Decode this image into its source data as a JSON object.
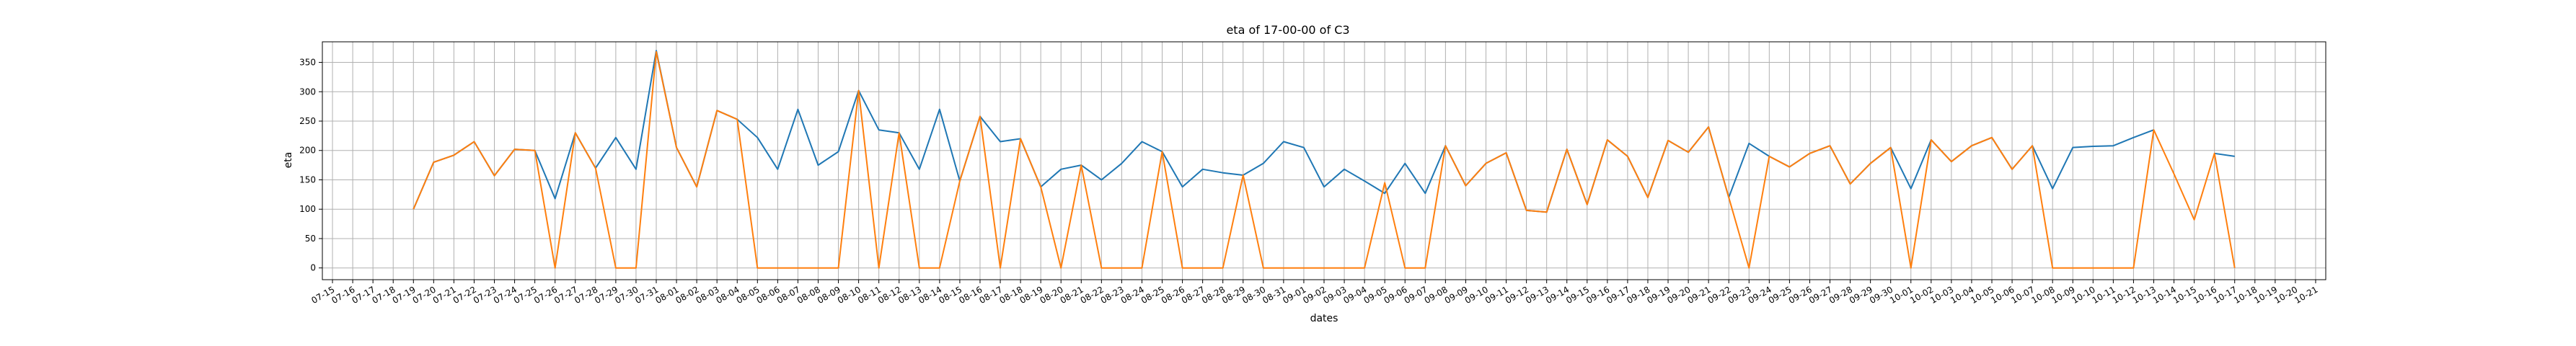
{
  "chart_data": {
    "type": "line",
    "title": "eta of 17-00-00 of C3",
    "xlabel": "dates",
    "ylabel": "eta",
    "x_ticks": [
      "07-15",
      "07-16",
      "07-17",
      "07-18",
      "07-19",
      "07-20",
      "07-21",
      "07-22",
      "07-23",
      "07-24",
      "07-25",
      "07-26",
      "07-27",
      "07-28",
      "07-29",
      "07-30",
      "07-31",
      "08-01",
      "08-02",
      "08-03",
      "08-04",
      "08-05",
      "08-06",
      "08-07",
      "08-08",
      "08-09",
      "08-10",
      "08-11",
      "08-12",
      "08-13",
      "08-14",
      "08-15",
      "08-16",
      "08-17",
      "08-18",
      "08-19",
      "08-20",
      "08-21",
      "08-22",
      "08-23",
      "08-24",
      "08-25",
      "08-26",
      "08-27",
      "08-28",
      "08-29",
      "08-30",
      "08-31",
      "09-01",
      "09-02",
      "09-03",
      "09-04",
      "09-05",
      "09-06",
      "09-07",
      "09-08",
      "09-09",
      "09-10",
      "09-11",
      "09-12",
      "09-13",
      "09-14",
      "09-15",
      "09-16",
      "09-17",
      "09-18",
      "09-19",
      "09-20",
      "09-21",
      "09-22",
      "09-23",
      "09-24",
      "09-25",
      "09-26",
      "09-27",
      "09-28",
      "09-29",
      "09-30",
      "10-01",
      "10-02",
      "10-03",
      "10-04",
      "10-05",
      "10-06",
      "10-07",
      "10-08",
      "10-09",
      "10-10",
      "10-11",
      "10-12",
      "10-13",
      "10-14",
      "10-15",
      "10-16",
      "10-17",
      "10-18",
      "10-19",
      "10-20",
      "10-21"
    ],
    "y_ticks": [
      0,
      50,
      100,
      150,
      200,
      250,
      300,
      350
    ],
    "xlim": [
      "07-15",
      "10-21"
    ],
    "ylim": [
      -20,
      385
    ],
    "grid": true,
    "colors": [
      "#1f77b4",
      "#ff7f0e"
    ],
    "series": [
      {
        "x": [
          "07-19",
          "07-20",
          "07-21",
          "07-22",
          "07-23",
          "07-24",
          "07-25",
          "07-26",
          "07-27",
          "07-28",
          "07-29",
          "07-30",
          "07-31",
          "08-01",
          "08-02",
          "08-03",
          "08-04",
          "08-05",
          "08-06",
          "08-07",
          "08-08",
          "08-09",
          "08-10",
          "08-11",
          "08-12",
          "08-13",
          "08-14",
          "08-15",
          "08-16",
          "08-17",
          "08-18",
          "08-19",
          "08-20",
          "08-21",
          "08-22",
          "08-23",
          "08-24",
          "08-25",
          "08-26",
          "08-27",
          "08-28",
          "08-29",
          "08-30",
          "08-31",
          "09-01",
          "09-02",
          "09-03",
          "09-04",
          "09-05",
          "09-06",
          "09-07",
          "09-08",
          "09-09",
          "09-10",
          "09-11",
          "09-12",
          "09-13",
          "09-14",
          "09-15",
          "09-16",
          "09-17",
          "09-18",
          "09-19",
          "09-20",
          "09-21",
          "09-22",
          "09-23",
          "09-24",
          "09-25",
          "09-26",
          "09-27",
          "09-28",
          "09-29",
          "09-30",
          "10-01",
          "10-02",
          "10-03",
          "10-04",
          "10-05",
          "10-06",
          "10-07",
          "10-08",
          "10-09",
          "10-10",
          "10-11",
          "10-12",
          "10-13",
          "10-14",
          "10-15",
          "10-16",
          "10-17"
        ],
        "values": [
          100,
          180,
          192,
          215,
          157,
          202,
          200,
          118,
          230,
          170,
          222,
          168,
          370,
          205,
          138,
          268,
          253,
          222,
          168,
          270,
          175,
          198,
          302,
          235,
          230,
          168,
          270,
          148,
          258,
          215,
          220,
          138,
          168,
          175,
          150,
          178,
          215,
          198,
          138,
          168,
          162,
          158,
          178,
          215,
          205,
          138,
          168,
          148,
          127,
          178,
          127,
          208,
          140,
          178,
          196,
          98,
          95,
          202,
          108,
          218,
          190,
          120,
          217,
          197,
          240,
          120,
          212,
          190,
          172,
          195,
          208,
          143,
          178,
          205,
          135,
          218,
          181,
          208,
          222,
          168,
          208,
          135,
          205,
          207,
          208,
          222,
          235,
          null,
          null,
          195,
          190
        ]
      },
      {
        "x": [
          "07-19",
          "07-20",
          "07-21",
          "07-22",
          "07-23",
          "07-24",
          "07-25",
          "07-26",
          "07-27",
          "07-28",
          "07-29",
          "07-30",
          "07-31",
          "08-01",
          "08-02",
          "08-03",
          "08-04",
          "08-05",
          "08-06",
          "08-07",
          "08-08",
          "08-09",
          "08-10",
          "08-11",
          "08-12",
          "08-13",
          "08-14",
          "08-15",
          "08-16",
          "08-17",
          "08-18",
          "08-19",
          "08-20",
          "08-21",
          "08-22",
          "08-23",
          "08-24",
          "08-25",
          "08-26",
          "08-27",
          "08-28",
          "08-29",
          "08-30",
          "08-31",
          "09-01",
          "09-02",
          "09-03",
          "09-04",
          "09-05",
          "09-06",
          "09-07",
          "09-08",
          "09-09",
          "09-10",
          "09-11",
          "09-12",
          "09-13",
          "09-14",
          "09-15",
          "09-16",
          "09-17",
          "09-18",
          "09-19",
          "09-20",
          "09-21",
          "09-22",
          "09-23",
          "09-24",
          "09-25",
          "09-26",
          "09-27",
          "09-28",
          "09-29",
          "09-30",
          "10-01",
          "10-02",
          "10-03",
          "10-04",
          "10-05",
          "10-06",
          "10-07",
          "10-08",
          "10-09",
          "10-10",
          "10-11",
          "10-12",
          "10-13",
          "10-14",
          "10-15",
          "10-16",
          "10-17"
        ],
        "values": [
          100,
          180,
          192,
          215,
          157,
          202,
          200,
          0,
          230,
          170,
          0,
          0,
          368,
          205,
          138,
          268,
          253,
          0,
          0,
          0,
          0,
          0,
          302,
          0,
          230,
          0,
          0,
          148,
          258,
          0,
          220,
          138,
          0,
          175,
          0,
          0,
          0,
          198,
          0,
          0,
          0,
          158,
          0,
          0,
          0,
          0,
          0,
          0,
          145,
          0,
          0,
          208,
          140,
          178,
          196,
          98,
          95,
          202,
          108,
          218,
          190,
          120,
          217,
          197,
          240,
          120,
          0,
          190,
          172,
          195,
          208,
          143,
          178,
          205,
          0,
          218,
          181,
          208,
          222,
          168,
          208,
          0,
          0,
          0,
          0,
          0,
          235,
          160,
          82,
          195,
          0
        ]
      }
    ]
  }
}
